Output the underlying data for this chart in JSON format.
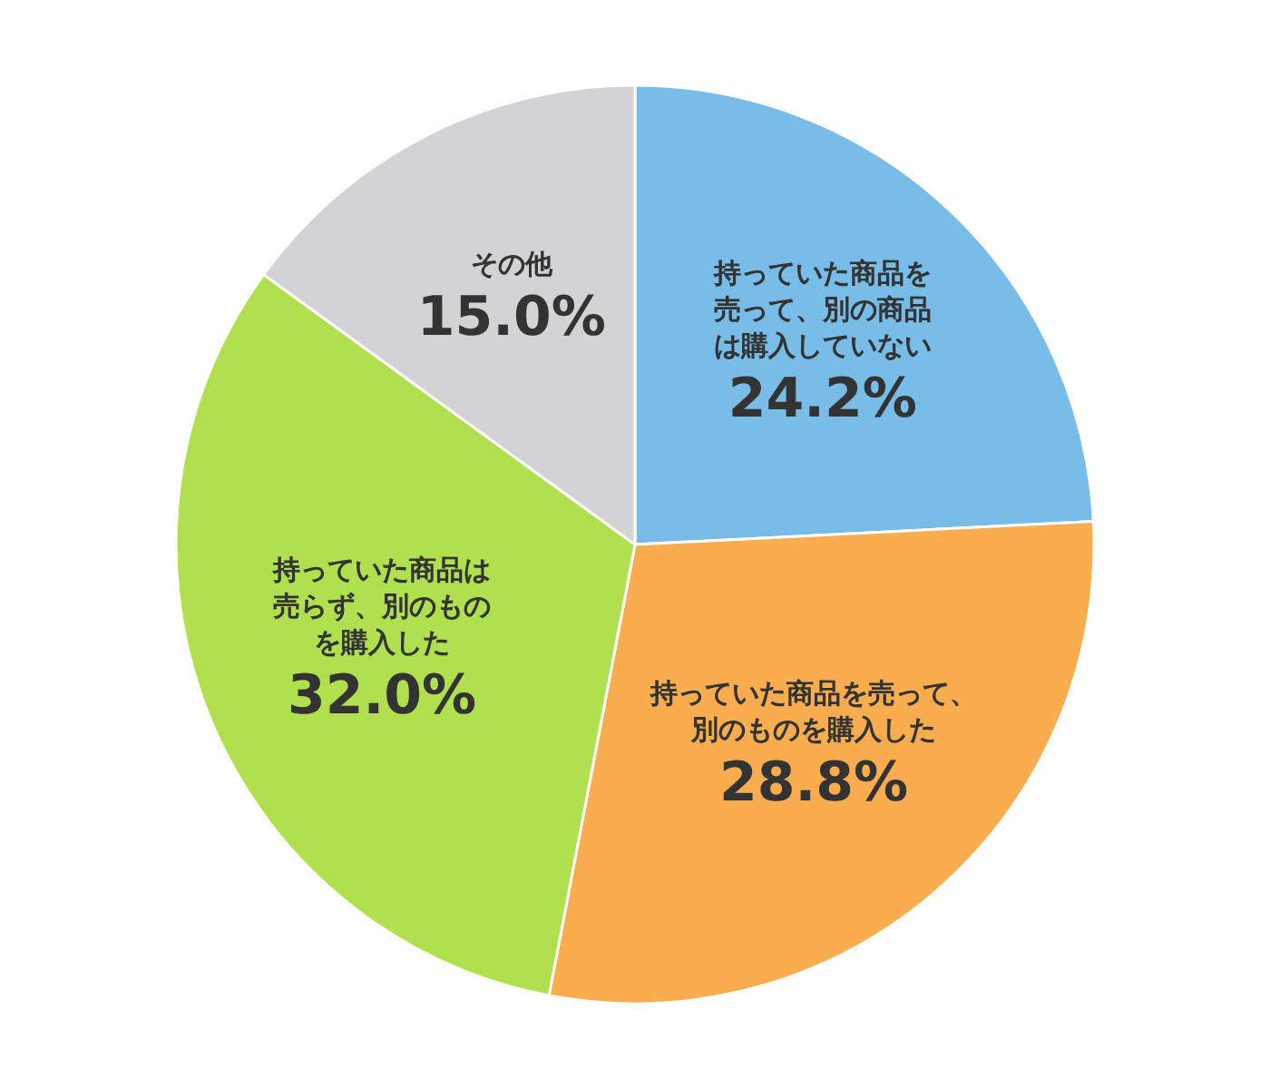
{
  "chart_data": {
    "type": "pie",
    "categories": [
      "持っていた商品を売って、別の商品は購入していない",
      "持っていた商品を売って、別のものを購入した",
      "持っていた商品は売らず、別のものを購入した",
      "その他"
    ],
    "values": [
      24.2,
      28.8,
      32.0,
      15.0
    ],
    "colors": [
      "#77bde8",
      "#f9ad4f",
      "#b0e04e",
      "#d3d2d4"
    ],
    "value_labels": [
      "24.2%",
      "28.8%",
      "32.0%",
      "15.0%"
    ]
  }
}
